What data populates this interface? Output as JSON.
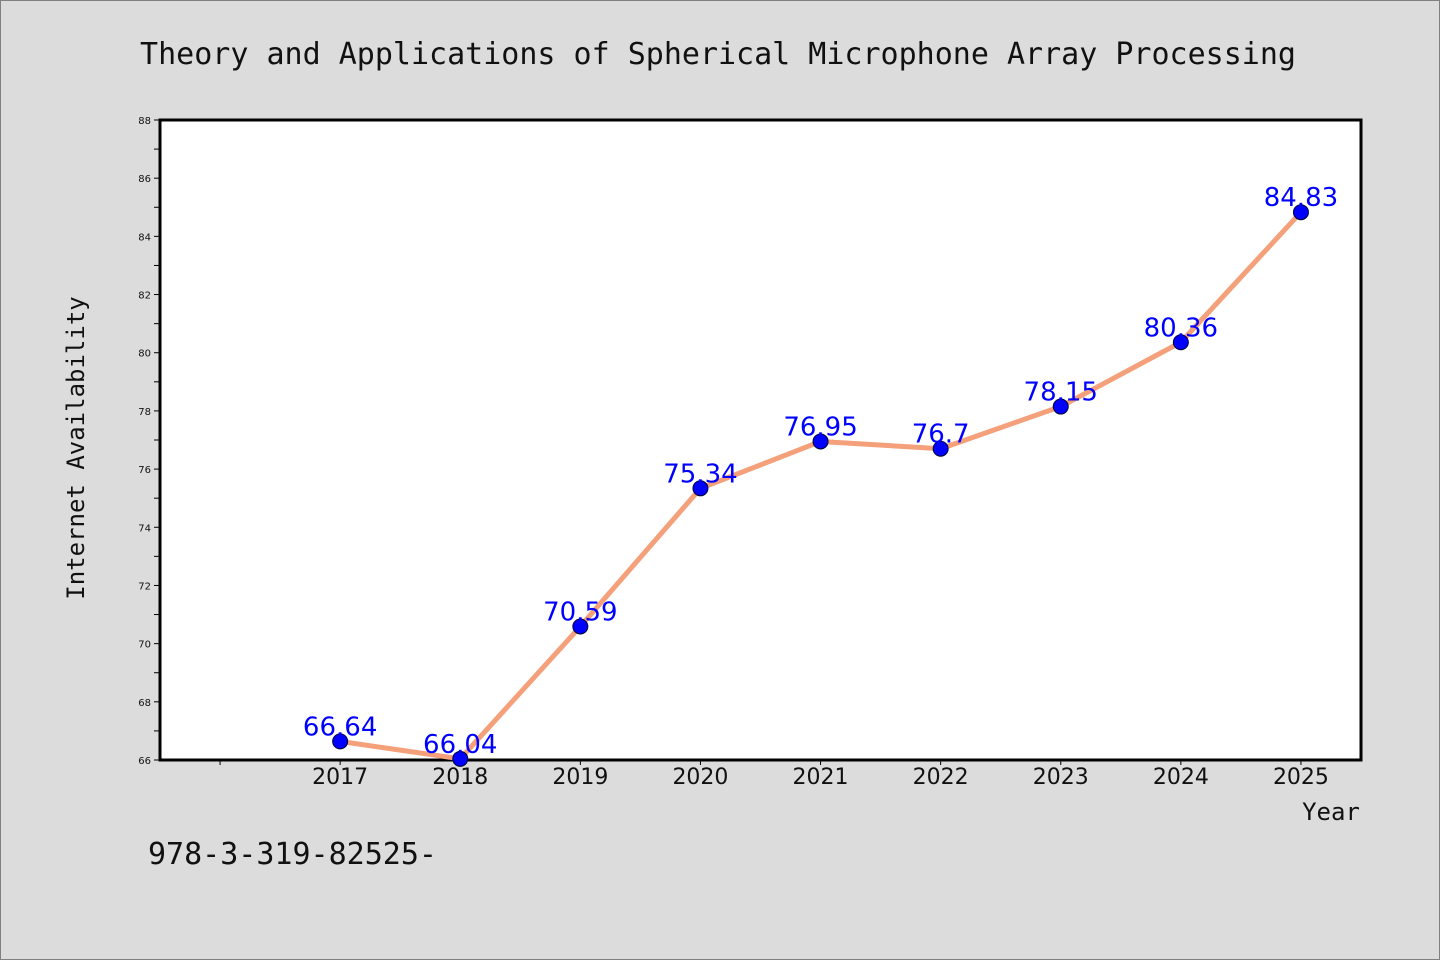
{
  "chart_data": {
    "type": "line",
    "title": "Theory and Applications of Spherical Microphone Array Processing",
    "xlabel": "Year",
    "ylabel": "Internet Availability",
    "categories": [
      "2017",
      "2018",
      "2019",
      "2020",
      "2021",
      "2022",
      "2023",
      "2024",
      "2025"
    ],
    "series": [
      {
        "values": [
          66.64,
          66.04,
          70.59,
          75.34,
          76.95,
          76.7,
          78.15,
          80.36,
          84.83
        ],
        "data_labels": [
          "66.64",
          "66.04",
          "70.59",
          "75.34",
          "76.95",
          "76.7",
          "78.15",
          "80.36",
          "84.83"
        ]
      }
    ],
    "ylim": [
      66,
      88
    ],
    "yticks": [
      "66",
      "68",
      "70",
      "72",
      "74",
      "76",
      "78",
      "80",
      "82",
      "84",
      "86",
      "88"
    ],
    "grid": false,
    "legend": "none",
    "colors": {
      "line": "#f4a07a",
      "marker": "#0000ff",
      "data_label": "#0000ff",
      "background": "#dcdcdc",
      "plot_area": "#ffffff"
    }
  },
  "footer": {
    "text": "978-3-319-82525-"
  }
}
